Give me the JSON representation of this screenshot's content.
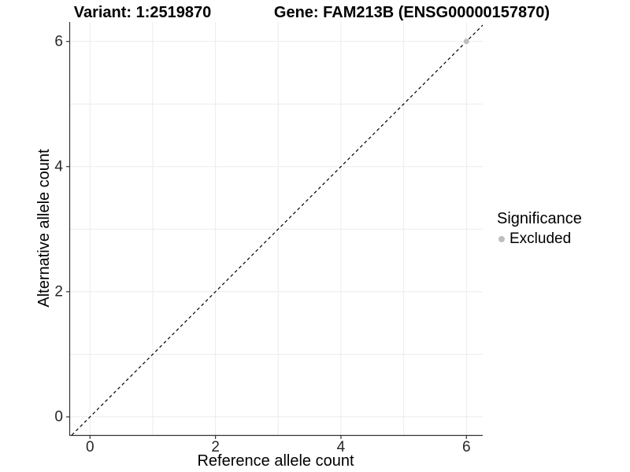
{
  "chart_data": {
    "type": "scatter",
    "titles": {
      "variant": "Variant: 1:2519870",
      "gene": "Gene: FAM213B (ENSG00000157870)"
    },
    "xlabel": "Reference allele count",
    "ylabel": "Alternative allele count",
    "xticks": [
      0,
      2,
      4,
      6
    ],
    "yticks": [
      0,
      2,
      4,
      6
    ],
    "gridlines_x": [
      0,
      1,
      2,
      3,
      4,
      5,
      6
    ],
    "gridlines_y": [
      0,
      1,
      2,
      3,
      4,
      5,
      6
    ],
    "xlim": [
      -0.33,
      6.26
    ],
    "ylim": [
      -0.29,
      6.31
    ],
    "grid_on": true,
    "identity_line": {
      "style": "dashed",
      "slope": 1,
      "intercept": 0,
      "color": "#000000"
    },
    "points": [
      {
        "x": 6,
        "y": 6,
        "series": "Excluded"
      }
    ],
    "legend": {
      "title": "Significance",
      "position": "right",
      "entries": [
        {
          "label": "Excluded",
          "color": "#bebebe"
        }
      ]
    },
    "colors": {
      "background": "#ffffff",
      "grid": "#ebebeb",
      "axis": "#333333",
      "tick_text": "#262626",
      "point": "#bebebe"
    }
  }
}
